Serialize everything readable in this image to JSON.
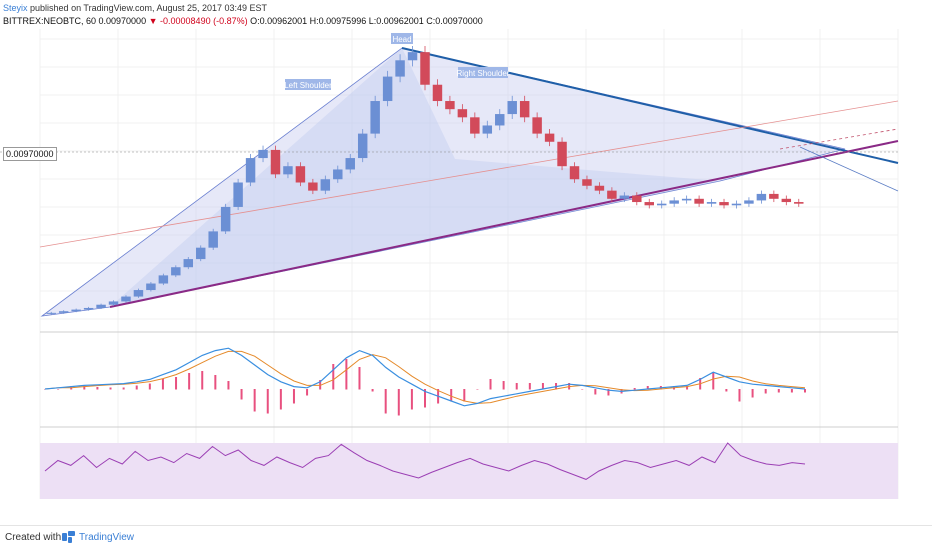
{
  "header": {
    "author": "Steyix",
    "published": "published on TradingView.com, August 25, 2017 03:49 EST",
    "symbol_line_a": "BITTREX:NEOBTC, 60  0.00970000",
    "arrow": "▼",
    "change": "-0.00008490 (-0.87%)",
    "ohlc": "O:0.00962001 H:0.00975996 L:0.00962001 C:0.00970000"
  },
  "price_badge": "0.00970000",
  "footer": {
    "created_with": "Created with",
    "brand": "TradingView"
  },
  "colors": {
    "wedge_fill": "#c8cbf0",
    "trend_blue": "#1f5fa8",
    "trend_purple": "#8a2a86",
    "rsi_line": "#9b3fb4",
    "rsi_band": "#ecdff5",
    "macd_blue": "#3a8fe0",
    "macd_orange": "#e58a2a",
    "hist_pink": "#e8507f",
    "candle_up": "#6b8fd4",
    "candle_down": "#d24a5a"
  },
  "annotations": {
    "head": "Head",
    "left_shoulder": "Left Shoulder",
    "right_shoulder": "Right Shoulder"
  },
  "chart_data": {
    "type": "candlestick",
    "description_title": "",
    "price": {
      "close": [
        0.003,
        0.0031,
        0.0032,
        0.0033,
        0.0035,
        0.0037,
        0.004,
        0.0044,
        0.0048,
        0.0053,
        0.0058,
        0.0063,
        0.007,
        0.008,
        0.0095,
        0.011,
        0.0125,
        0.013,
        0.0115,
        0.012,
        0.011,
        0.0105,
        0.0112,
        0.0118,
        0.0125,
        0.014,
        0.016,
        0.0175,
        0.0185,
        0.019,
        0.017,
        0.016,
        0.0155,
        0.015,
        0.014,
        0.0145,
        0.0152,
        0.016,
        0.015,
        0.014,
        0.0135,
        0.012,
        0.0112,
        0.0108,
        0.0105,
        0.01,
        0.0102,
        0.0098,
        0.0096,
        0.0097,
        0.0099,
        0.01,
        0.0097,
        0.0098,
        0.0096,
        0.0097,
        0.0099,
        0.0103,
        0.01,
        0.0098,
        0.0097
      ],
      "note": "approximate closes for BITTREX:NEOBTC 60-minute candles"
    },
    "macd": {
      "line": [
        0,
        0.1,
        0.2,
        0.3,
        0.35,
        0.4,
        0.45,
        0.6,
        0.8,
        1.2,
        1.6,
        2.2,
        2.8,
        3.2,
        3.4,
        2.8,
        2.0,
        1.2,
        0.6,
        0.2,
        0.1,
        0.6,
        1.6,
        2.6,
        3.2,
        2.8,
        1.8,
        1.0,
        0.4,
        -0.2,
        -0.6,
        -1.0,
        -1.4,
        -1.2,
        -0.8,
        -0.6,
        -0.4,
        -0.2,
        0,
        0.2,
        0.4,
        0.3,
        0.1,
        -0.1,
        -0.2,
        -0.1,
        0,
        0.1,
        0.2,
        0.3,
        0.8,
        1.4,
        1.0,
        0.6,
        0.4,
        0.3,
        0.2,
        0.1,
        0
      ]
    },
    "rsi": {
      "values": [
        40,
        55,
        48,
        62,
        45,
        58,
        50,
        68,
        55,
        60,
        52,
        65,
        58,
        75,
        62,
        70,
        55,
        48,
        60,
        52,
        45,
        58,
        62,
        78,
        66,
        55,
        48,
        40,
        35,
        30,
        38,
        45,
        52,
        58,
        50,
        45,
        40,
        48,
        55,
        50,
        42,
        35,
        28,
        40,
        48,
        55,
        52,
        45,
        50,
        55,
        48,
        60,
        52,
        80,
        62,
        55,
        50,
        48,
        52,
        50
      ],
      "ylim": [
        0,
        100
      ]
    }
  }
}
